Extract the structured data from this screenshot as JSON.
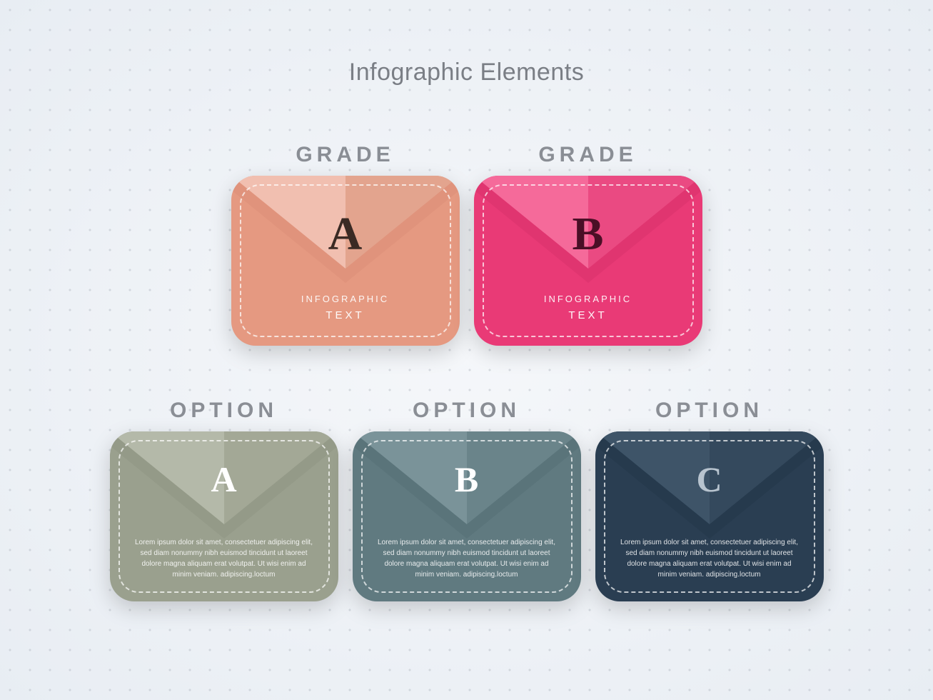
{
  "title": "Infographic Elements",
  "top_row_label": "GRADE",
  "bottom_row_label": "OPTION",
  "envelope_subtext_line1": "INFOGRAPHIC",
  "envelope_subtext_line2": "TEXT",
  "lorem": "Lorem ipsum dolor sit amet, consectetuer adipiscing elit, sed diam nonummy nibh euismod tincidunt ut laoreet dolore magna aliquam erat volutpat. Ut wisi enim ad minim veniam. adipiscing.loctum",
  "top_cards": [
    {
      "letter": "A",
      "body_color": "#e59981",
      "flap_light": "#f1bfb0",
      "flap_mid": "#e3a48e",
      "flap_shadow": "#d68a72",
      "letter_color": "#3a2a24"
    },
    {
      "letter": "B",
      "body_color": "#e93a76",
      "flap_light": "#f56a9a",
      "flap_mid": "#ea4a82",
      "flap_shadow": "#d12d66",
      "letter_color": "#4a0f26"
    }
  ],
  "bottom_cards": [
    {
      "letter": "A",
      "body_color": "#9aa08e",
      "flap_light": "#b4b9a9",
      "flap_mid": "#a3a896",
      "flap_shadow": "#8a907e",
      "letter_color": "#ffffff"
    },
    {
      "letter": "B",
      "body_color": "#607a80",
      "flap_light": "#7a9399",
      "flap_mid": "#6a848a",
      "flap_shadow": "#516a70",
      "letter_color": "#ffffff"
    },
    {
      "letter": "C",
      "body_color": "#2a3e52",
      "flap_light": "#3e5468",
      "flap_mid": "#34495d",
      "flap_shadow": "#203344",
      "letter_color": "#b8c4cf"
    }
  ],
  "background_dot_color": "#b8bec7",
  "background_gradient_inner": "#f5f7fa",
  "background_gradient_outer": "#e8edf3"
}
